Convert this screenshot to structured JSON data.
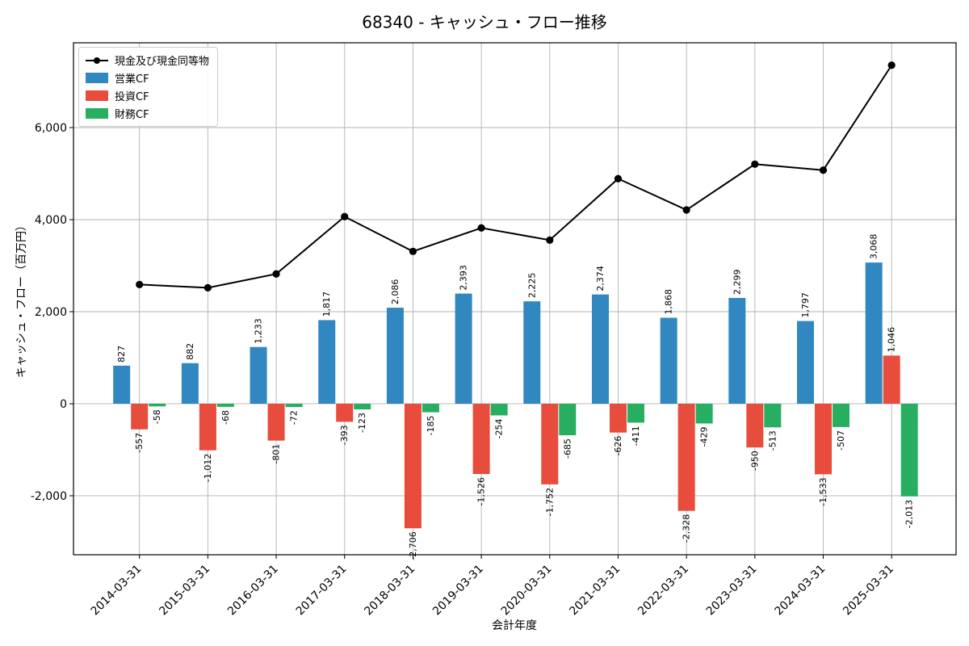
{
  "chart_data": {
    "type": "bar",
    "subtype": "grouped-bars-with-line",
    "title": "68340 - キャッシュ・フロー推移",
    "xlabel": "会計年度",
    "ylabel": "キャッシュ・フロー（百万円）",
    "categories": [
      "2014-03-31",
      "2015-03-31",
      "2016-03-31",
      "2017-03-31",
      "2018-03-31",
      "2019-03-31",
      "2020-03-31",
      "2021-03-31",
      "2022-03-31",
      "2023-03-31",
      "2024-03-31",
      "2025-03-31"
    ],
    "series": [
      {
        "name": "営業CF",
        "type": "bar",
        "color": "#3187c0",
        "values": [
          827,
          882,
          1233,
          1817,
          2086,
          2393,
          2225,
          2374,
          1868,
          2299,
          1797,
          3068
        ]
      },
      {
        "name": "投資CF",
        "type": "bar",
        "color": "#e74c3c",
        "values": [
          -557,
          -1012,
          -801,
          -393,
          -2706,
          -1526,
          -1752,
          -626,
          -2328,
          -950,
          -1533,
          1046
        ]
      },
      {
        "name": "財務CF",
        "type": "bar",
        "color": "#27ae60",
        "values": [
          -58,
          -68,
          -72,
          -123,
          -185,
          -254,
          -685,
          -411,
          -429,
          -513,
          -507,
          -2013
        ]
      }
    ],
    "line_series": {
      "name": "現金及び現金同等物",
      "color": "#000000",
      "values": [
        2590,
        2520,
        2820,
        4065,
        3310,
        3820,
        3555,
        4890,
        4210,
        5205,
        5075,
        7355
      ]
    },
    "yticks": [
      -2000,
      0,
      2000,
      4000,
      6000
    ],
    "ylim": [
      -3281,
      7842
    ],
    "grid": true,
    "legend_position": "upper left",
    "colors": {
      "grid": "#b3b3b3",
      "spine": "#000000",
      "background": "#ffffff"
    }
  }
}
